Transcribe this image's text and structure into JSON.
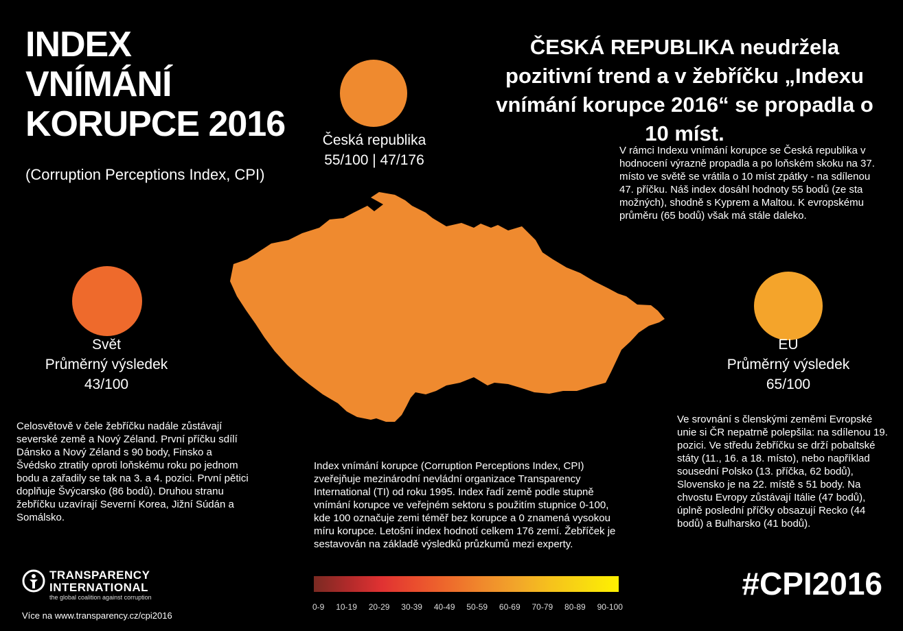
{
  "title": {
    "line1": "INDEX",
    "line2": "VNÍMÁNÍ",
    "line3": "KORUPCE 2016",
    "subtitle": "(Corruption Perceptions Index, CPI)"
  },
  "headline": "ČESKÁ REPUBLIKA neudržela pozitivní trend a v žebříčku „Indexu vnímání korupce 2016“ se propadla o 10 míst.",
  "czech_intro": "V rámci Indexu vnímání korupce se Česká republika v hodnocení výrazně propadla a po loňském skoku na 37. místo ve světě se vrátila o 10 míst zpátky - na sdílenou 47. příčku. Náš index dosáhl hodnoty 55 bodů (ze sta možných), shodně s Kyprem a Maltou. K evropskému průměru (65 bodů) však má stále daleko.",
  "stats": {
    "czech": {
      "name": "Česká republika",
      "value": "55/100 | 47/176",
      "color": "#ef8a2f"
    },
    "world": {
      "name": "Svět",
      "label": "Průměrný výsledek",
      "value": "43/100",
      "color": "#ee6a2c"
    },
    "eu": {
      "name": "EU",
      "label": "Průměrný výsledek",
      "value": "65/100",
      "color": "#f4a42b"
    }
  },
  "world_text": "Celosvětově v čele žebříčku nadále zůstávají severské země a Nový Zéland. První příčku sdílí Dánsko a Nový Zéland s 90 body, Finsko a Švédsko ztratily oproti loňskému roku po jednom bodu a zařadily se tak na 3. a 4. pozici. První pětici doplňuje Švýcarsko (86 bodů). Druhou stranu žebříčku uzavírají Severní Korea, Jižní Súdán a Somálsko.",
  "eu_text": "Ve srovnání s členskými zeměmi Evropské unie si ČR nepatrně polepšila: na sdílenou 19. pozici. Ve středu žebříčku se drží pobaltské státy (11., 16. a 18. místo), nebo například sousední Polsko (13. příčka, 62 bodů), Slovensko je na 22. místě s 51 body. Na chvostu Evropy zůstávají Itálie (47 bodů), úplně poslední příčky obsazují Recko (44 bodů) a Bulharsko (41 bodů).",
  "cpi_text": "Index vnímání korupce (Corruption Perceptions Index, CPI) zveřejňuje mezinárodní nevládní organizace Transparency International (TI) od roku 1995. Index řadí země podle stupně vnímání korupce ve veřejném sektoru s použitím stupnice 0-100, kde 100 označuje zemi téměř bez korupce a 0 znamená vysokou míru korupce. Letošní index hodnotí celkem 176 zemí. Žebříček je sestavován na základě výsledků průzkumů mezi experty.",
  "legend": [
    "0-9",
    "10-19",
    "20-29",
    "30-39",
    "40-49",
    "50-59",
    "60-69",
    "70-79",
    "80-89",
    "90-100"
  ],
  "map_color": "#ef8a2f",
  "hashtag": "#CPI2016",
  "logo": {
    "line1": "TRANSPARENCY",
    "line2": "INTERNATIONAL",
    "tagline": "the global coalition against corruption",
    "icon": "ti-logo-icon"
  },
  "footer": "Více na www.transparency.cz/cpi2016"
}
